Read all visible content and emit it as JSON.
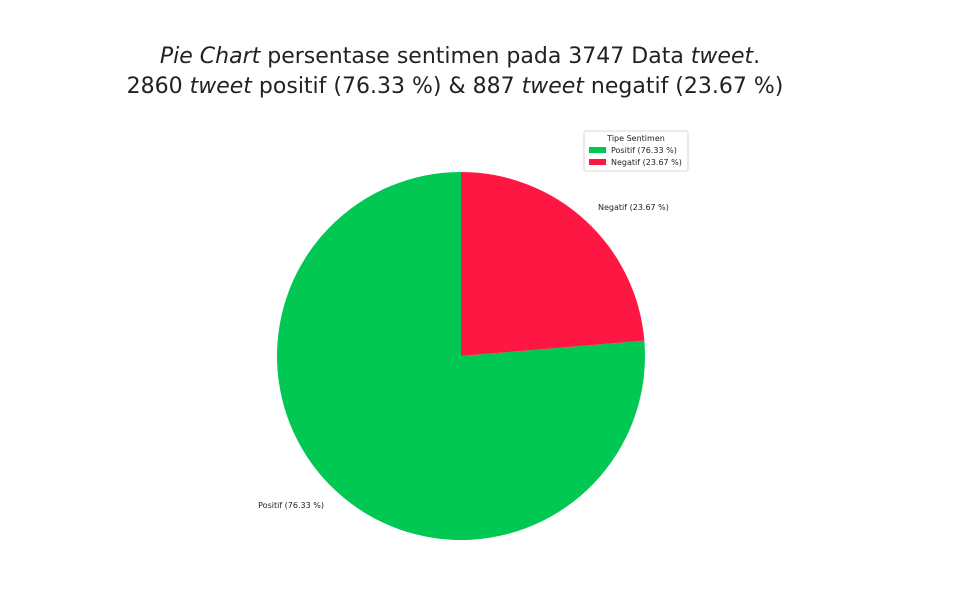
{
  "chart_data": {
    "type": "pie",
    "title_line1": {
      "part1": "Pie Chart",
      "part2": " persentase sentimen pada 3747 Data ",
      "part3": "tweet",
      "part4": "."
    },
    "title_line2": {
      "part1": "2860 ",
      "part2": "tweet",
      "part3": " positif (76.33 %) & 887 ",
      "part4": "tweet",
      "part5": " negatif (23.67 %)"
    },
    "total": 3747,
    "slices": [
      {
        "label": "Positif (76.33 %)",
        "count": 2860,
        "percent": 76.33,
        "color": "#00c853"
      },
      {
        "label": "Negatif (23.67 %)",
        "count": 887,
        "percent": 23.67,
        "color": "#ff1744"
      }
    ],
    "legend": {
      "title": "Tipe Sentimen",
      "placement": "top-right",
      "items": [
        {
          "label": "Positif (76.33 %)",
          "color": "#00c853"
        },
        {
          "label": "Negatif (23.67 %)",
          "color": "#ff1744"
        }
      ]
    },
    "start_angle_deg": 90,
    "direction": "counterclockwise"
  }
}
